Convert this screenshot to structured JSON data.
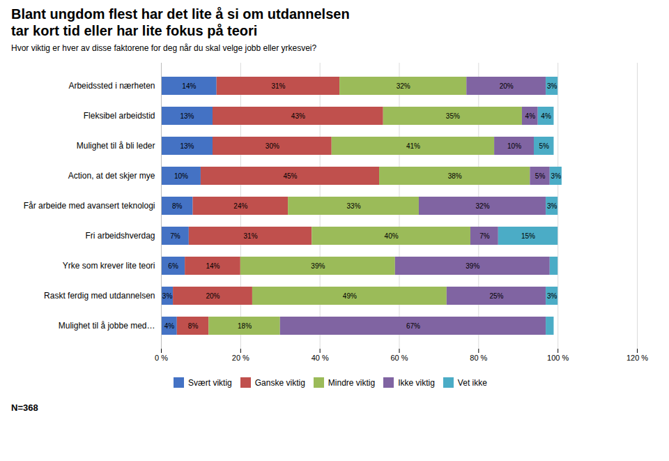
{
  "chart_data": {
    "type": "bar",
    "orientation": "horizontal",
    "stacked": true,
    "title": "Blant ungdom flest har det lite å si om utdannelsen\ntar kort tid eller har lite fokus på teori",
    "subtitle": "Hvor viktig er hver av disse faktorene for deg når du skal velge jobb eller yrkesvei?",
    "categories": [
      "Arbeidssted i nærheten",
      "Fleksibel arbeidstid",
      "Mulighet til å bli leder",
      "Action, at det skjer mye",
      "Får arbeide med avansert teknologi",
      "Fri arbeidshverdag",
      "Yrke som krever lite teori",
      "Raskt ferdig med utdannelsen",
      "Mulighet til å jobbe med…"
    ],
    "series": [
      {
        "name": "Svært viktig",
        "color": "#4472C4",
        "values": [
          14,
          13,
          13,
          10,
          8,
          7,
          6,
          3,
          4
        ],
        "value_labels": [
          "14%",
          "13%",
          "13%",
          "10%",
          "8%",
          "7%",
          "6%",
          "3%",
          "4%"
        ]
      },
      {
        "name": "Ganske viktig",
        "color": "#C0504D",
        "values": [
          31,
          43,
          30,
          45,
          24,
          31,
          14,
          20,
          8
        ],
        "value_labels": [
          "31%",
          "43%",
          "30%",
          "45%",
          "24%",
          "31%",
          "14%",
          "20%",
          "8%"
        ]
      },
      {
        "name": "Mindre viktig",
        "color": "#9BBB59",
        "values": [
          32,
          35,
          41,
          38,
          33,
          40,
          39,
          49,
          18
        ],
        "value_labels": [
          "32%",
          "35%",
          "41%",
          "38%",
          "33%",
          "40%",
          "39%",
          "49%",
          "18%"
        ]
      },
      {
        "name": "Ikke viktig",
        "color": "#8064A2",
        "values": [
          20,
          4,
          10,
          5,
          32,
          7,
          39,
          25,
          67
        ],
        "value_labels": [
          "20%",
          "4%",
          "10%",
          "5%",
          "32%",
          "7%",
          "39%",
          "25%",
          "67%"
        ]
      },
      {
        "name": "Vet ikke",
        "color": "#4BACC6",
        "values": [
          3,
          4,
          5,
          3,
          3,
          15,
          2,
          3,
          2
        ],
        "value_labels": [
          "3%",
          "4%",
          "5%",
          "3%",
          "3%",
          "15%",
          null,
          "3%",
          null
        ]
      }
    ],
    "xlim": [
      0,
      120
    ],
    "xticks": [
      {
        "value": 0,
        "label": "0 %"
      },
      {
        "value": 20,
        "label": "20 %"
      },
      {
        "value": 40,
        "label": "40 %"
      },
      {
        "value": 60,
        "label": "60 %"
      },
      {
        "value": 80,
        "label": "80 %"
      },
      {
        "value": 100,
        "label": "100 %"
      },
      {
        "value": 120,
        "label": "120 %"
      }
    ],
    "grid": true,
    "legend": "bottom",
    "data_labels": true,
    "annotations": [
      "N=368"
    ]
  }
}
